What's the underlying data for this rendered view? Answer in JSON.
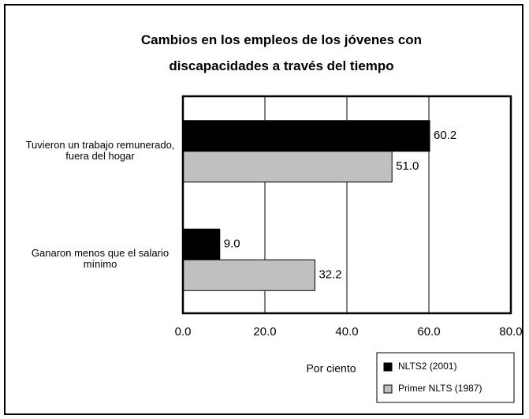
{
  "chart_data": {
    "type": "hbar",
    "title": "Cambios en los empleos de los jóvenes con discapacidades a través del tiempo",
    "categories": [
      "Tuvieron un trabajo remunerado, fuera del hogar",
      "Ganaron menos que el salario mínimo"
    ],
    "series": [
      {
        "name": "NLTS2 (2001)",
        "color": "#000000",
        "values": [
          60.2,
          9.0
        ],
        "value_labels": [
          "60.2",
          "9.0"
        ]
      },
      {
        "name": "Primer NLTS (1987)",
        "color": "#c0c0c0",
        "values": [
          51.0,
          32.2
        ],
        "value_labels": [
          "51.0",
          "32.2"
        ]
      }
    ],
    "x_label": "Por ciento",
    "xlim": [
      0,
      80
    ],
    "xticks": [
      {
        "value": 0,
        "label": "0.0"
      },
      {
        "value": 20,
        "label": "20.0"
      },
      {
        "value": 40,
        "label": "40.0"
      },
      {
        "value": 60,
        "label": "60.0"
      },
      {
        "value": 80,
        "label": "80.0"
      }
    ],
    "grid": true,
    "legend": "bottom-right"
  }
}
